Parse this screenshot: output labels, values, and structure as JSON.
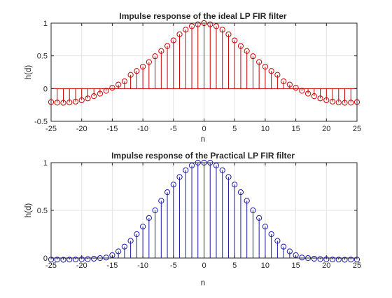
{
  "figure": {
    "background": "#ffffff"
  },
  "chart_data": [
    {
      "type": "stem",
      "title": "Impulse response of the ideal LP FIR filter",
      "xlabel": "n",
      "ylabel": "h(d)",
      "xlim": [
        -25,
        25
      ],
      "ylim": [
        -0.5,
        1
      ],
      "xticks": [
        -25,
        -20,
        -15,
        -10,
        -5,
        0,
        5,
        10,
        15,
        20,
        25
      ],
      "yticks": [
        -0.5,
        0,
        0.5,
        1
      ],
      "ytick_labels": [
        "-0.5",
        "0",
        "0.5",
        "1"
      ],
      "grid": true,
      "color": "#cc0000",
      "series": [
        {
          "x": [
            -25,
            -24,
            -23,
            -22,
            -21,
            -20,
            -19,
            -18,
            -17,
            -16,
            -15,
            -14,
            -13,
            -12,
            -11,
            -10,
            -9,
            -8,
            -7,
            -6,
            -5,
            -4,
            -3,
            -2,
            -1,
            0,
            1,
            2,
            3,
            4,
            5,
            6,
            7,
            8,
            9,
            10,
            11,
            12,
            13,
            14,
            15,
            16,
            17,
            18,
            19,
            20,
            21,
            22,
            23,
            24,
            25
          ],
          "y": [
            -0.206,
            -0.215,
            -0.217,
            -0.212,
            -0.198,
            -0.178,
            -0.15,
            -0.116,
            -0.077,
            -0.034,
            0.013,
            0.061,
            0.111,
            0.21,
            0.269,
            0.335,
            0.405,
            0.494,
            0.574,
            0.65,
            0.737,
            0.829,
            0.9,
            0.953,
            0.982,
            1.0,
            0.982,
            0.953,
            0.9,
            0.829,
            0.737,
            0.65,
            0.574,
            0.494,
            0.405,
            0.335,
            0.269,
            0.21,
            0.111,
            0.061,
            0.013,
            -0.034,
            -0.077,
            -0.116,
            -0.15,
            -0.178,
            -0.198,
            -0.212,
            -0.217,
            -0.215,
            -0.206
          ]
        }
      ]
    },
    {
      "type": "stem",
      "title": "Impulse response of the Practical LP FIR filter",
      "xlabel": "n",
      "ylabel": "h(d)",
      "xlim": [
        -25,
        25
      ],
      "ylim": [
        0,
        1
      ],
      "xticks": [
        -25,
        -20,
        -15,
        -10,
        -5,
        0,
        5,
        10,
        15,
        20,
        25
      ],
      "yticks": [
        0,
        0.5,
        1
      ],
      "ytick_labels": [
        "0",
        "0.5",
        "1"
      ],
      "grid": true,
      "color": "#1a1aaa",
      "series": [
        {
          "x": [
            -25,
            -24,
            -23,
            -22,
            -21,
            -20,
            -19,
            -18,
            -17,
            -16,
            -15,
            -14,
            -13,
            -12,
            -11,
            -10,
            -9,
            -8,
            -7,
            -6,
            -5,
            -4,
            -3,
            -2,
            -1,
            0,
            1,
            2,
            3,
            4,
            5,
            6,
            7,
            8,
            9,
            10,
            11,
            12,
            13,
            14,
            15,
            16,
            17,
            18,
            19,
            20,
            21,
            22,
            23,
            24,
            25
          ],
          "y": [
            -0.016,
            -0.016,
            -0.018,
            -0.016,
            -0.015,
            -0.013,
            -0.011,
            -0.007,
            -0.001,
            0.005,
            0.03,
            0.07,
            0.12,
            0.18,
            0.25,
            0.33,
            0.42,
            0.5,
            0.6,
            0.69,
            0.77,
            0.85,
            0.92,
            0.97,
            1.0,
            1.0,
            1.0,
            0.97,
            0.92,
            0.85,
            0.77,
            0.69,
            0.6,
            0.5,
            0.42,
            0.33,
            0.25,
            0.18,
            0.12,
            0.07,
            0.03,
            0.005,
            -0.001,
            -0.007,
            -0.011,
            -0.013,
            -0.015,
            -0.016,
            -0.018,
            -0.016,
            -0.016
          ]
        }
      ]
    }
  ]
}
